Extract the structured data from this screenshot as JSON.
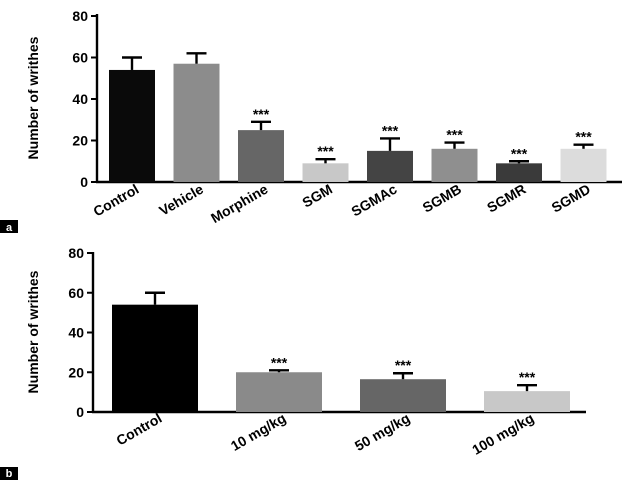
{
  "chart_data": [
    {
      "panel": "a",
      "type": "bar",
      "title": "",
      "xlabel": "",
      "ylabel": "Number of writhes",
      "ylim": [
        0,
        80
      ],
      "yticks": [
        0,
        20,
        40,
        60,
        80
      ],
      "grid": false,
      "categories": [
        "Control",
        "Vehicle",
        "Morphine",
        "SGM",
        "SGMAc",
        "SGMB",
        "SGMR",
        "SGMD"
      ],
      "values": [
        54,
        57,
        25,
        9,
        15,
        16,
        9,
        16
      ],
      "errors": [
        6,
        5,
        4,
        2,
        6,
        3,
        1,
        2
      ],
      "annotations": [
        "",
        "",
        "***",
        "***",
        "***",
        "***",
        "***",
        "***"
      ],
      "colors": [
        "#0a0a0a",
        "#8c8c8c",
        "#666666",
        "#c8c8c8",
        "#444444",
        "#8f8f8f",
        "#3a3a3a",
        "#dcdcdc"
      ]
    },
    {
      "panel": "b",
      "type": "bar",
      "title": "",
      "xlabel": "",
      "ylabel": "Number of writhes",
      "ylim": [
        0,
        80
      ],
      "yticks": [
        0,
        20,
        40,
        60,
        80
      ],
      "grid": false,
      "categories": [
        "Control",
        "10 mg/kg",
        "50 mg/kg",
        "100 mg/kg"
      ],
      "values": [
        54,
        20,
        16.5,
        10.5
      ],
      "errors": [
        6,
        1,
        3,
        3
      ],
      "annotations": [
        "",
        "***",
        "***",
        "***"
      ],
      "colors": [
        "#000000",
        "#8a8a8a",
        "#666666",
        "#c8c8c8"
      ]
    }
  ]
}
